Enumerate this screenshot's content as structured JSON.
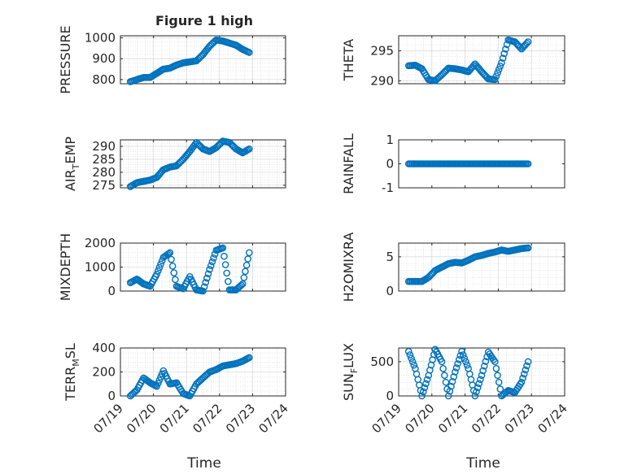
{
  "figure_title": "Figure 1 high",
  "xlabel_left": "Time",
  "xlabel_right": "Time",
  "date_ticks": [
    "07/19",
    "07/20",
    "07/21",
    "07/22",
    "07/23",
    "07/24"
  ],
  "colors": {
    "marker": "#0072bd",
    "axis": "#262626",
    "grid": "#b0b0b0"
  },
  "chart_data": [
    {
      "type": "scatter",
      "label": "PRESSURE",
      "label_sub": "",
      "ylim": [
        780,
        1010
      ],
      "yticks": [
        800,
        900,
        1000
      ],
      "ytick_labels": [
        "800",
        "900",
        "1000"
      ],
      "grid": true,
      "series_x": [
        0.3,
        0.5,
        0.7,
        0.9,
        1.1,
        1.3,
        1.5,
        1.7,
        1.9,
        2.1,
        2.3,
        2.5,
        2.7,
        2.9,
        3.1,
        3.3,
        3.5,
        3.7,
        3.9
      ],
      "series_y": [
        790,
        800,
        810,
        810,
        830,
        850,
        855,
        870,
        880,
        885,
        890,
        920,
        960,
        990,
        985,
        975,
        965,
        945,
        930
      ]
    },
    {
      "type": "scatter",
      "label": "THETA",
      "label_sub": "",
      "ylim": [
        289.5,
        297.5
      ],
      "yticks": [
        290,
        295
      ],
      "ytick_labels": [
        "290",
        "295"
      ],
      "grid": true,
      "series_x": [
        0.3,
        0.5,
        0.7,
        0.9,
        1.1,
        1.3,
        1.5,
        1.7,
        1.9,
        2.1,
        2.3,
        2.5,
        2.7,
        2.9,
        3.1,
        3.3,
        3.5,
        3.7,
        3.9
      ],
      "series_y": [
        292.5,
        292.6,
        292,
        290.2,
        290,
        291,
        292.1,
        292,
        291.8,
        291.5,
        292.8,
        291.5,
        290.3,
        290.2,
        293,
        296.8,
        296.5,
        295.3,
        296.5
      ]
    },
    {
      "type": "scatter",
      "label": "AIR",
      "label_sub": "T",
      "label_rest": "EMP",
      "ylim": [
        274,
        292.5
      ],
      "yticks": [
        275,
        280,
        285,
        290
      ],
      "ytick_labels": [
        "275",
        "280",
        "285",
        "290"
      ],
      "grid": true,
      "series_x": [
        0.3,
        0.5,
        0.7,
        0.9,
        1.1,
        1.3,
        1.5,
        1.7,
        1.9,
        2.1,
        2.3,
        2.5,
        2.7,
        2.9,
        3.1,
        3.3,
        3.5,
        3.7,
        3.9
      ],
      "series_y": [
        274.5,
        276,
        276.5,
        277,
        278,
        281,
        282,
        282.5,
        285,
        288,
        291.5,
        289,
        288,
        289.5,
        292,
        291.5,
        289,
        287.5,
        289
      ]
    },
    {
      "type": "scatter",
      "label": "RAINFALL",
      "label_sub": "",
      "ylim": [
        -1,
        1
      ],
      "yticks": [
        -1,
        0,
        1
      ],
      "ytick_labels": [
        "-1",
        "0",
        "1"
      ],
      "grid": false,
      "series_x": [
        0.3,
        0.5,
        0.7,
        0.9,
        1.1,
        1.3,
        1.5,
        1.7,
        1.9,
        2.1,
        2.3,
        2.5,
        2.7,
        2.9,
        3.1,
        3.3,
        3.5,
        3.7,
        3.9
      ],
      "series_y": [
        0,
        0,
        0,
        0,
        0,
        0,
        0,
        0,
        0,
        0,
        0,
        0,
        0,
        0,
        0,
        0,
        0,
        0,
        0
      ]
    },
    {
      "type": "scatter",
      "label": "MIXDEPTH",
      "label_sub": "",
      "ylim": [
        0,
        2000
      ],
      "yticks": [
        0,
        1000,
        2000
      ],
      "ytick_labels": [
        "0",
        "1000",
        "2000"
      ],
      "grid": true,
      "series_x": [
        0.3,
        0.5,
        0.7,
        0.9,
        1.1,
        1.3,
        1.5,
        1.7,
        1.9,
        2.1,
        2.3,
        2.5,
        2.7,
        2.9,
        3.1,
        3.3,
        3.5,
        3.7,
        3.9
      ],
      "series_y": [
        350,
        500,
        300,
        200,
        700,
        1400,
        1600,
        200,
        100,
        600,
        50,
        0,
        900,
        1700,
        1800,
        50,
        50,
        300,
        1600
      ]
    },
    {
      "type": "scatter",
      "label": "H2OMIXRA",
      "label_sub": "",
      "ylim": [
        0,
        7
      ],
      "yticks": [
        0,
        5
      ],
      "ytick_labels": [
        "0",
        "5"
      ],
      "grid": true,
      "series_x": [
        0.3,
        0.5,
        0.7,
        0.9,
        1.1,
        1.3,
        1.5,
        1.7,
        1.9,
        2.1,
        2.3,
        2.5,
        2.7,
        2.9,
        3.1,
        3.3,
        3.5,
        3.7,
        3.9
      ],
      "series_y": [
        1.4,
        1.4,
        1.4,
        2,
        3,
        3.5,
        4,
        4.2,
        4.1,
        4.5,
        5,
        5.2,
        5.5,
        5.7,
        6,
        5.8,
        6,
        6.2,
        6.3
      ]
    },
    {
      "type": "scatter",
      "label": "TERR",
      "label_sub": "M",
      "label_rest": "SL",
      "ylim": [
        0,
        400
      ],
      "yticks": [
        0,
        200,
        400
      ],
      "ytick_labels": [
        "0",
        "200",
        "400"
      ],
      "grid": true,
      "series_x": [
        0.3,
        0.5,
        0.7,
        0.9,
        1.1,
        1.3,
        1.5,
        1.7,
        1.9,
        2.1,
        2.3,
        2.5,
        2.7,
        2.9,
        3.1,
        3.3,
        3.5,
        3.7,
        3.9
      ],
      "series_y": [
        0,
        50,
        150,
        110,
        80,
        210,
        100,
        110,
        20,
        0,
        100,
        150,
        200,
        220,
        250,
        260,
        270,
        290,
        320
      ]
    },
    {
      "type": "scatter",
      "label": "SUN",
      "label_sub": "F",
      "label_rest": "LUX",
      "ylim": [
        0,
        700
      ],
      "yticks": [
        0,
        500
      ],
      "ytick_labels": [
        "0",
        "500"
      ],
      "grid": true,
      "series_x": [
        0.3,
        0.5,
        0.7,
        0.9,
        1.1,
        1.3,
        1.5,
        1.7,
        1.9,
        2.1,
        2.3,
        2.5,
        2.7,
        2.9,
        3.1,
        3.3,
        3.5,
        3.7,
        3.9
      ],
      "series_y": [
        650,
        400,
        0,
        300,
        680,
        500,
        0,
        350,
        650,
        400,
        0,
        300,
        640,
        500,
        0,
        80,
        50,
        200,
        500
      ]
    }
  ]
}
